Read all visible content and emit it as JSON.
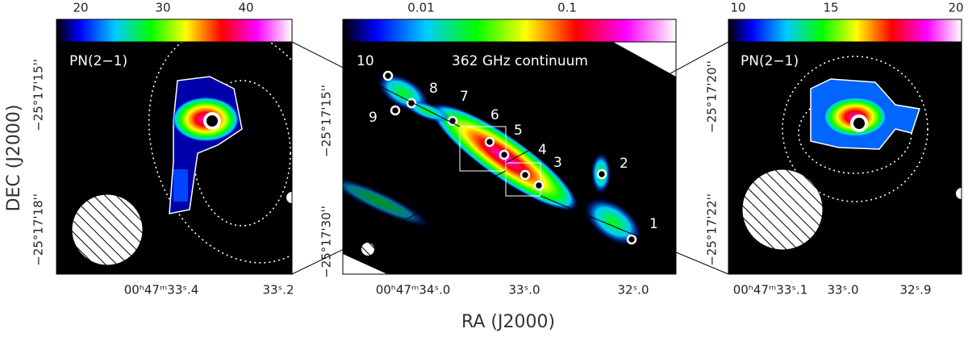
{
  "colorbars": {
    "left": [
      "20",
      "30",
      "40"
    ],
    "middle": [
      "0.01",
      "0.1"
    ],
    "right": [
      "10",
      "15",
      "20"
    ]
  },
  "panels": {
    "left": {
      "label": "PN(2−1)",
      "y_ticks": [
        "−25°17'15''",
        "−25°17'18''"
      ],
      "x_ticks": [
        "00ʰ47ᵐ33ˢ.4",
        "33ˢ.2"
      ]
    },
    "middle": {
      "label": "362 GHz continuum",
      "y_ticks": [
        "−25°17'15''",
        "−25°17'30''"
      ],
      "x_ticks": [
        "00ʰ47ᵐ34ˢ.0",
        "33ˢ.0",
        "32ˢ.0"
      ]
    },
    "right": {
      "label": "PN(2−1)",
      "y_ticks": [
        "−25°17'20''",
        "−25°17'22''"
      ],
      "x_ticks": [
        "00ʰ47ᵐ33ˢ.1",
        "33ˢ.0",
        "32ˢ.9"
      ]
    }
  },
  "axis_labels": {
    "y": "DEC (J2000)",
    "x": "RA (J2000)"
  },
  "sources": [
    "1",
    "2",
    "3",
    "4",
    "5",
    "6",
    "7",
    "8",
    "9",
    "10"
  ]
}
